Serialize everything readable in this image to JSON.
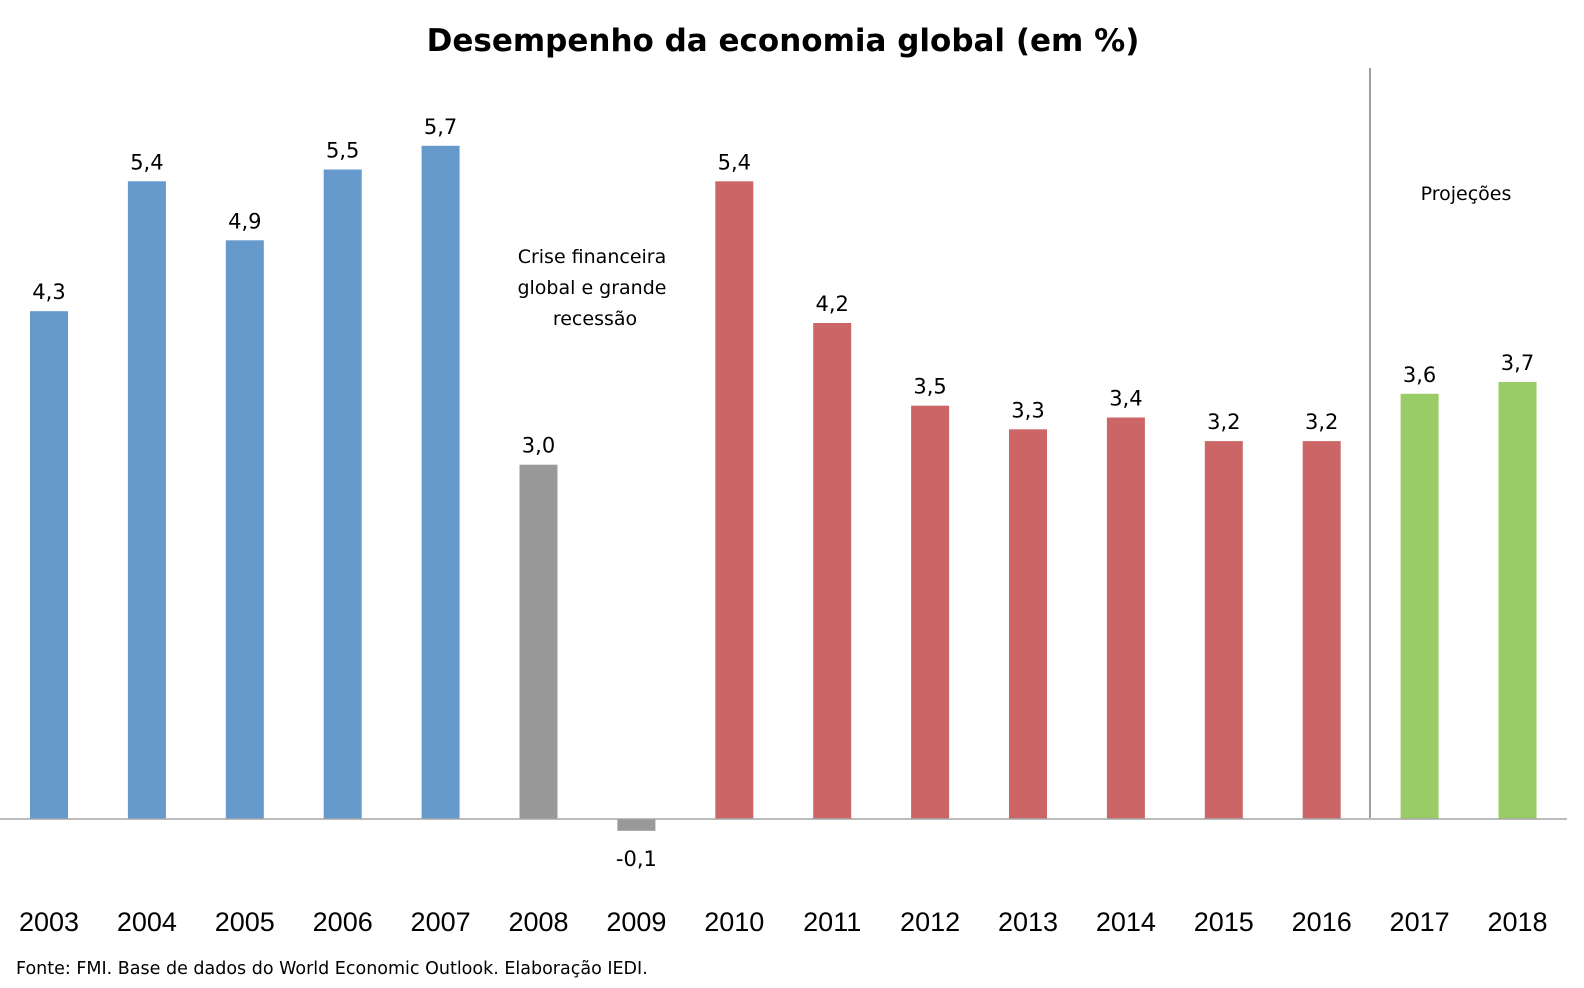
{
  "chart_data": {
    "type": "bar",
    "title": "Desempenho da economia global (em %)",
    "categories": [
      "2003",
      "2004",
      "2005",
      "2006",
      "2007",
      "2008",
      "2009",
      "2010",
      "2011",
      "2012",
      "2013",
      "2014",
      "2015",
      "2016",
      "2017",
      "2018"
    ],
    "values": [
      4.3,
      5.4,
      4.9,
      5.5,
      5.7,
      3.0,
      -0.1,
      5.4,
      4.2,
      3.5,
      3.3,
      3.4,
      3.2,
      3.2,
      3.6,
      3.7
    ],
    "value_labels": [
      "4,3",
      "5,4",
      "4,9",
      "5,5",
      "5,7",
      "3,0",
      "-0,1",
      "5,4",
      "4,2",
      "3,5",
      "3,3",
      "3,4",
      "3,2",
      "3,2",
      "3,6",
      "3,7"
    ],
    "bar_colors": [
      "#6699cc",
      "#6699cc",
      "#6699cc",
      "#6699cc",
      "#6699cc",
      "#999999",
      "#999999",
      "#cc6666",
      "#cc6666",
      "#cc6666",
      "#cc6666",
      "#cc6666",
      "#cc6666",
      "#cc6666",
      "#99cc66",
      "#99cc66"
    ],
    "xlabel": "",
    "ylabel": "",
    "grid": false,
    "legend": "none",
    "annotations": [
      {
        "lines": [
          "Crise financeira",
          "global e grande",
          "recessão"
        ],
        "near": "2008–2009"
      },
      {
        "lines": [
          "Projeções"
        ],
        "near": "2017–2018"
      }
    ],
    "source": "Fonte: FMI. Base de dados do World Economic Outlook. Elaboração IEDI."
  }
}
